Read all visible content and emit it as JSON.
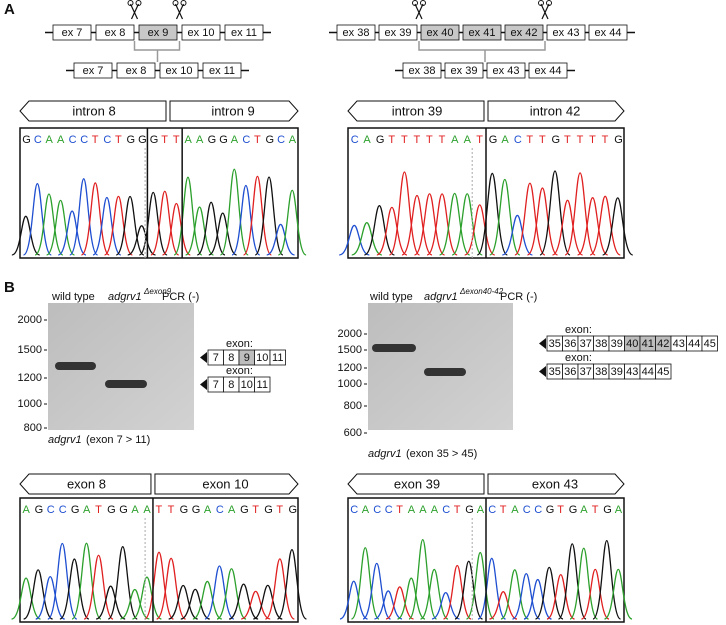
{
  "panel_a": {
    "label": "A",
    "left_schematic": {
      "top": [
        {
          "label": "ex 7",
          "shaded": false
        },
        {
          "label": "ex 8",
          "shaded": false
        },
        {
          "label": "ex 9",
          "shaded": true
        },
        {
          "label": "ex 10",
          "shaded": false
        },
        {
          "label": "ex 11",
          "shaded": false
        }
      ],
      "bottom": [
        {
          "label": "ex 7",
          "shaded": false
        },
        {
          "label": "ex 8",
          "shaded": false
        },
        {
          "label": "ex 10",
          "shaded": false
        },
        {
          "label": "ex 11",
          "shaded": false
        }
      ]
    },
    "right_schematic": {
      "top": [
        {
          "label": "ex 38",
          "shaded": false
        },
        {
          "label": "ex 39",
          "shaded": false
        },
        {
          "label": "ex 40",
          "shaded": true
        },
        {
          "label": "ex 41",
          "shaded": true
        },
        {
          "label": "ex 42",
          "shaded": true
        },
        {
          "label": "ex 43",
          "shaded": false
        },
        {
          "label": "ex 44",
          "shaded": false
        }
      ],
      "bottom": [
        {
          "label": "ex 38",
          "shaded": false
        },
        {
          "label": "ex 39",
          "shaded": false
        },
        {
          "label": "ex 43",
          "shaded": false
        },
        {
          "label": "ex 44",
          "shaded": false
        }
      ]
    },
    "chromatograms": [
      {
        "regions": [
          "intron 8",
          "intron 9"
        ],
        "segments": [
          "GCAACCTCTGG",
          "GTT",
          "AAGGACTGCA"
        ]
      },
      {
        "regions": [
          "intron 39",
          "intron 42"
        ],
        "segments": [
          "CAGTTTTTAAT",
          "GACTTGTTTTG"
        ]
      }
    ]
  },
  "panel_b": {
    "label": "B",
    "gels": [
      {
        "lanes": [
          "wild type",
          "adgrv1",
          "PCR (-)"
        ],
        "mutant_superscript": "Δexon9",
        "ladder": [
          "2000",
          "1500",
          "1200",
          "1000",
          "800"
        ],
        "constructs": [
          {
            "label": "exon:",
            "exons": [
              {
                "label": "7",
                "shaded": false
              },
              {
                "label": "8",
                "shaded": false
              },
              {
                "label": "9",
                "shaded": true
              },
              {
                "label": "10",
                "shaded": false
              },
              {
                "label": "11",
                "shaded": false
              }
            ]
          },
          {
            "label": "exon:",
            "exons": [
              {
                "label": "7",
                "shaded": false
              },
              {
                "label": "8",
                "shaded": false
              },
              {
                "label": "10",
                "shaded": false
              },
              {
                "label": "11",
                "shaded": false
              }
            ]
          }
        ],
        "caption_gene": "adgrv1",
        "caption_range": "(exon 7 > 11)"
      },
      {
        "lanes": [
          "wild type",
          "adgrv1",
          "PCR (-)"
        ],
        "mutant_superscript": "Δexon40-42",
        "ladder": [
          "2000",
          "1500",
          "1200",
          "1000",
          "800",
          "600"
        ],
        "constructs": [
          {
            "label": "exon:",
            "exons": [
              {
                "label": "35",
                "shaded": false
              },
              {
                "label": "36",
                "shaded": false
              },
              {
                "label": "37",
                "shaded": false
              },
              {
                "label": "38",
                "shaded": false
              },
              {
                "label": "39",
                "shaded": false
              },
              {
                "label": "40",
                "shaded": true
              },
              {
                "label": "41",
                "shaded": true
              },
              {
                "label": "42",
                "shaded": true
              },
              {
                "label": "43",
                "shaded": false
              },
              {
                "label": "44",
                "shaded": false
              },
              {
                "label": "45",
                "shaded": false
              }
            ]
          },
          {
            "label": "exon:",
            "exons": [
              {
                "label": "35",
                "shaded": false
              },
              {
                "label": "36",
                "shaded": false
              },
              {
                "label": "37",
                "shaded": false
              },
              {
                "label": "38",
                "shaded": false
              },
              {
                "label": "39",
                "shaded": false
              },
              {
                "label": "43",
                "shaded": false
              },
              {
                "label": "44",
                "shaded": false
              },
              {
                "label": "45",
                "shaded": false
              }
            ]
          }
        ],
        "caption_gene": "adgrv1",
        "caption_range": "(exon 35 > 45)"
      }
    ],
    "chromatograms": [
      {
        "regions": [
          "exon 8",
          "exon 10"
        ],
        "segments": [
          "AGCCGATGGAA",
          "TTGGACAGTGTG"
        ]
      },
      {
        "regions": [
          "exon 39",
          "exon 43"
        ],
        "segments": [
          "CACCTAAACTGA",
          "CTACCGTGATGA"
        ]
      }
    ]
  }
}
